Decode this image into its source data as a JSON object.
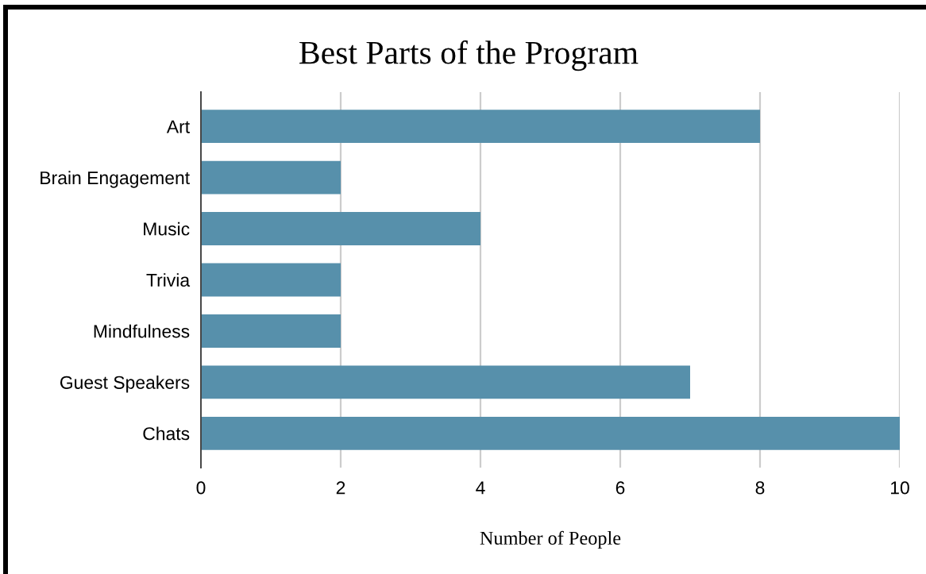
{
  "chart_data": {
    "type": "bar",
    "orientation": "horizontal",
    "title": "Best Parts of the Program",
    "xlabel": "Number of People",
    "categories": [
      "Art",
      "Brain Engagement",
      "Music",
      "Trivia",
      "Mindfulness",
      "Guest Speakers",
      "Chats"
    ],
    "values": [
      8,
      2,
      4,
      2,
      2,
      7,
      10
    ],
    "color": "#5790ab",
    "xlim": [
      0,
      10
    ],
    "xticks": [
      0,
      2,
      4,
      6,
      8,
      10
    ],
    "grid": "x"
  }
}
